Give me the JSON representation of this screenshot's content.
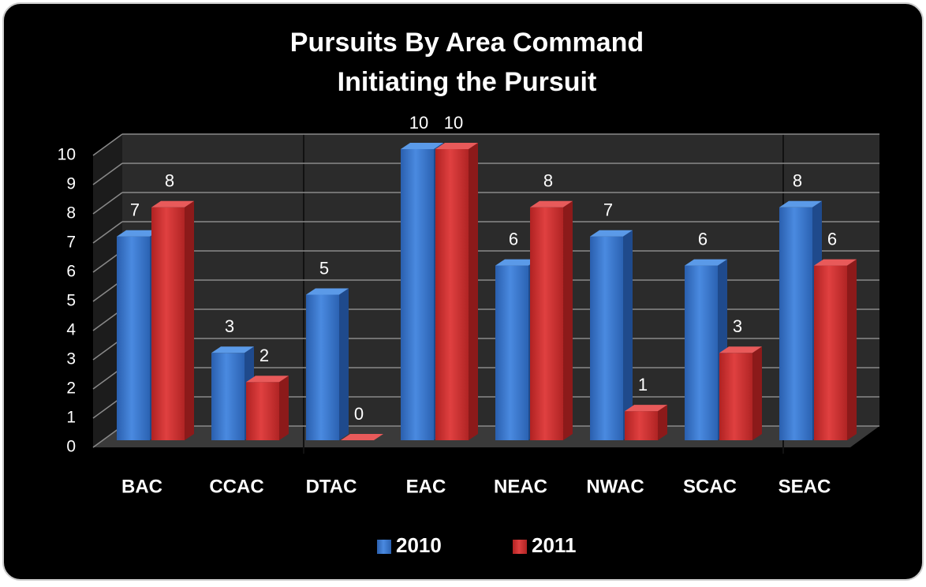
{
  "chart_data": {
    "type": "bar3d",
    "title": [
      "Pursuits By Area Command",
      "Initiating the Pursuit"
    ],
    "categories": [
      "BAC",
      "CCAC",
      "DTAC",
      "EAC",
      "NEAC",
      "NWAC",
      "SCAC",
      "SEAC"
    ],
    "series": [
      {
        "name": "2010",
        "color": "#3a78d0",
        "values": [
          7,
          3,
          5,
          10,
          6,
          7,
          6,
          8
        ]
      },
      {
        "name": "2011",
        "color": "#d43232",
        "values": [
          8,
          2,
          0,
          10,
          8,
          1,
          3,
          6
        ]
      }
    ],
    "ylim": [
      0,
      10
    ],
    "yticks": [
      0,
      1,
      2,
      3,
      4,
      5,
      6,
      7,
      8,
      9,
      10
    ],
    "grid": true,
    "legend": "bottom"
  }
}
